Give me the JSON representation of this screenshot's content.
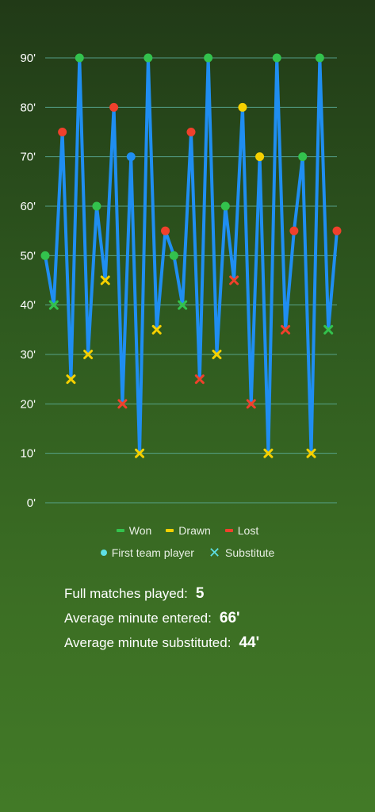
{
  "chart_data": {
    "type": "line",
    "ylim": [
      0,
      90
    ],
    "yticks": [
      0,
      10,
      20,
      30,
      40,
      50,
      60,
      70,
      80,
      90
    ],
    "ytick_labels": [
      "0'",
      "10'",
      "20'",
      "30'",
      "40'",
      "50'",
      "60'",
      "70'",
      "80'",
      "90'"
    ],
    "grid": true,
    "line_color": "#1f8ef1",
    "gridline_color": "#5fb3a3",
    "points": [
      {
        "y": 50,
        "result": "won",
        "kind": "first_team"
      },
      {
        "y": 40,
        "result": "won",
        "kind": "substitute"
      },
      {
        "y": 75,
        "result": "lost",
        "kind": "first_team"
      },
      {
        "y": 25,
        "result": "drawn",
        "kind": "substitute"
      },
      {
        "y": 90,
        "result": "won",
        "kind": "first_team"
      },
      {
        "y": 30,
        "result": "drawn",
        "kind": "substitute"
      },
      {
        "y": 60,
        "result": "won",
        "kind": "first_team"
      },
      {
        "y": 45,
        "result": "drawn",
        "kind": "substitute"
      },
      {
        "y": 80,
        "result": "lost",
        "kind": "first_team"
      },
      {
        "y": 20,
        "result": "lost",
        "kind": "substitute"
      },
      {
        "y": 70,
        "result": "none",
        "kind": "first_team"
      },
      {
        "y": 10,
        "result": "drawn",
        "kind": "substitute"
      },
      {
        "y": 90,
        "result": "won",
        "kind": "first_team"
      },
      {
        "y": 35,
        "result": "drawn",
        "kind": "substitute"
      },
      {
        "y": 55,
        "result": "lost",
        "kind": "first_team"
      },
      {
        "y": 50,
        "result": "won",
        "kind": "first_team"
      },
      {
        "y": 40,
        "result": "won",
        "kind": "substitute"
      },
      {
        "y": 75,
        "result": "lost",
        "kind": "first_team"
      },
      {
        "y": 25,
        "result": "lost",
        "kind": "substitute"
      },
      {
        "y": 90,
        "result": "won",
        "kind": "first_team"
      },
      {
        "y": 30,
        "result": "drawn",
        "kind": "substitute"
      },
      {
        "y": 60,
        "result": "won",
        "kind": "first_team"
      },
      {
        "y": 45,
        "result": "lost",
        "kind": "substitute"
      },
      {
        "y": 80,
        "result": "drawn",
        "kind": "first_team"
      },
      {
        "y": 20,
        "result": "lost",
        "kind": "substitute"
      },
      {
        "y": 70,
        "result": "drawn",
        "kind": "first_team"
      },
      {
        "y": 10,
        "result": "drawn",
        "kind": "substitute"
      },
      {
        "y": 90,
        "result": "won",
        "kind": "first_team"
      },
      {
        "y": 35,
        "result": "lost",
        "kind": "substitute"
      },
      {
        "y": 55,
        "result": "lost",
        "kind": "first_team"
      },
      {
        "y": 70,
        "result": "won",
        "kind": "first_team"
      },
      {
        "y": 10,
        "result": "drawn",
        "kind": "substitute"
      },
      {
        "y": 90,
        "result": "won",
        "kind": "first_team"
      },
      {
        "y": 35,
        "result": "won",
        "kind": "substitute"
      },
      {
        "y": 55,
        "result": "lost",
        "kind": "first_team"
      }
    ],
    "colors": {
      "won": "#33c24d",
      "drawn": "#f5d000",
      "lost": "#f0402c",
      "none": "#1f8ef1",
      "first_team": "#5ee0e6"
    }
  },
  "legend": {
    "won": "Won",
    "drawn": "Drawn",
    "lost": "Lost",
    "first_team": "First team player",
    "substitute": "Substitute"
  },
  "stats": {
    "full_matches_label": "Full matches played:",
    "full_matches_value": "5",
    "avg_entered_label": "Average minute entered:",
    "avg_entered_value": "66'",
    "avg_substituted_label": "Average minute substituted:",
    "avg_substituted_value": "44'"
  }
}
